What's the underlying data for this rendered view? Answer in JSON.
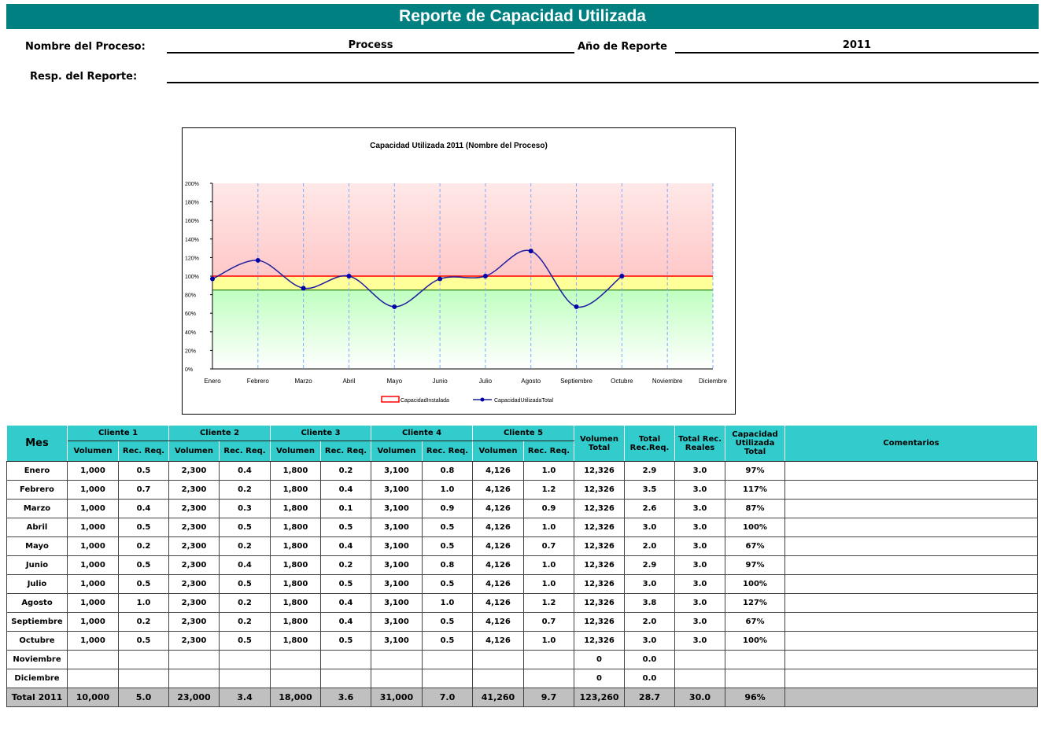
{
  "header": {
    "title": "Reporte de Capacidad Utilizada",
    "process_label": "Nombre del Proceso:",
    "process_value": "Process",
    "year_label": "Año de Reporte",
    "year_value": "2011",
    "resp_label": "Resp. del Reporte:"
  },
  "chart_data": {
    "type": "line",
    "title": "Capacidad Utilizada 2011 (Nombre del Proceso)",
    "categories": [
      "Enero",
      "Febrero",
      "Marzo",
      "Abril",
      "Mayo",
      "Junio",
      "Julio",
      "Agosto",
      "Septiembre",
      "Octubre",
      "Noviembre",
      "Diciembre"
    ],
    "series": [
      {
        "name": "CapacidadInstalada",
        "color": "#ff0000",
        "values": [
          100,
          100,
          100,
          100,
          100,
          100,
          100,
          100,
          100,
          100,
          100,
          100
        ]
      },
      {
        "name": "CapacidadUtilizadaTotal",
        "color": "#1f1f9f",
        "values": [
          97,
          117,
          87,
          100,
          67,
          97,
          100,
          127,
          67,
          100,
          null,
          null
        ]
      }
    ],
    "bands": [
      {
        "from": 0,
        "to": 85,
        "color": "#c8ffc8"
      },
      {
        "from": 85,
        "to": 100,
        "color": "#ffff99"
      },
      {
        "from": 100,
        "to": 200,
        "color": "#ffcccc"
      }
    ],
    "ylim": [
      0,
      200
    ],
    "yticks": [
      {
        "value": 0,
        "label": "0%"
      },
      {
        "value": 20,
        "label": "20%"
      },
      {
        "value": 40,
        "label": "40%"
      },
      {
        "value": 60,
        "label": "60%"
      },
      {
        "value": 80,
        "label": "80%"
      },
      {
        "value": 100,
        "label": "100%"
      },
      {
        "value": 120,
        "label": "120%"
      },
      {
        "value": 140,
        "label": "140%"
      },
      {
        "value": 160,
        "label": "160%"
      },
      {
        "value": 180,
        "label": "180%"
      },
      {
        "value": 200,
        "label": "200%"
      }
    ]
  },
  "table": {
    "month_header": "Mes",
    "clients": [
      "Cliente 1",
      "Cliente 2",
      "Cliente 3",
      "Cliente 4",
      "Cliente 5"
    ],
    "sub_headers": [
      "Volumen",
      "Rec. Req."
    ],
    "total_headers": [
      "Volumen Total",
      "Total Rec.Req.",
      "Total Rec. Reales",
      "Capacidad Utilizada Total"
    ],
    "comments_header": "Comentarios",
    "rows": [
      [
        "Enero",
        "1,000",
        "0.5",
        "2,300",
        "0.4",
        "1,800",
        "0.2",
        "3,100",
        "0.8",
        "4,126",
        "1.0",
        "12,326",
        "2.9",
        "3.0",
        "97%"
      ],
      [
        "Febrero",
        "1,000",
        "0.7",
        "2,300",
        "0.2",
        "1,800",
        "0.4",
        "3,100",
        "1.0",
        "4,126",
        "1.2",
        "12,326",
        "3.5",
        "3.0",
        "117%"
      ],
      [
        "Marzo",
        "1,000",
        "0.4",
        "2,300",
        "0.3",
        "1,800",
        "0.1",
        "3,100",
        "0.9",
        "4,126",
        "0.9",
        "12,326",
        "2.6",
        "3.0",
        "87%"
      ],
      [
        "Abril",
        "1,000",
        "0.5",
        "2,300",
        "0.5",
        "1,800",
        "0.5",
        "3,100",
        "0.5",
        "4,126",
        "1.0",
        "12,326",
        "3.0",
        "3.0",
        "100%"
      ],
      [
        "Mayo",
        "1,000",
        "0.2",
        "2,300",
        "0.2",
        "1,800",
        "0.4",
        "3,100",
        "0.5",
        "4,126",
        "0.7",
        "12,326",
        "2.0",
        "3.0",
        "67%"
      ],
      [
        "Junio",
        "1,000",
        "0.5",
        "2,300",
        "0.4",
        "1,800",
        "0.2",
        "3,100",
        "0.8",
        "4,126",
        "1.0",
        "12,326",
        "2.9",
        "3.0",
        "97%"
      ],
      [
        "Julio",
        "1,000",
        "0.5",
        "2,300",
        "0.5",
        "1,800",
        "0.5",
        "3,100",
        "0.5",
        "4,126",
        "1.0",
        "12,326",
        "3.0",
        "3.0",
        "100%"
      ],
      [
        "Agosto",
        "1,000",
        "1.0",
        "2,300",
        "0.2",
        "1,800",
        "0.4",
        "3,100",
        "1.0",
        "4,126",
        "1.2",
        "12,326",
        "3.8",
        "3.0",
        "127%"
      ],
      [
        "Septiembre",
        "1,000",
        "0.2",
        "2,300",
        "0.2",
        "1,800",
        "0.4",
        "3,100",
        "0.5",
        "4,126",
        "0.7",
        "12,326",
        "2.0",
        "3.0",
        "67%"
      ],
      [
        "Octubre",
        "1,000",
        "0.5",
        "2,300",
        "0.5",
        "1,800",
        "0.5",
        "3,100",
        "0.5",
        "4,126",
        "1.0",
        "12,326",
        "3.0",
        "3.0",
        "100%"
      ],
      [
        "Noviembre",
        null,
        null,
        null,
        null,
        null,
        null,
        null,
        null,
        null,
        null,
        "0",
        "0.0",
        null,
        null
      ],
      [
        "Diciembre",
        null,
        null,
        null,
        null,
        null,
        null,
        null,
        null,
        null,
        null,
        "0",
        "0.0",
        null,
        null
      ]
    ],
    "total": [
      "Total 2011",
      "10,000",
      "5.0",
      "23,000",
      "3.4",
      "18,000",
      "3.6",
      "31,000",
      "7.0",
      "41,260",
      "9.7",
      "123,260",
      "28.7",
      "30.0",
      "96%"
    ]
  }
}
